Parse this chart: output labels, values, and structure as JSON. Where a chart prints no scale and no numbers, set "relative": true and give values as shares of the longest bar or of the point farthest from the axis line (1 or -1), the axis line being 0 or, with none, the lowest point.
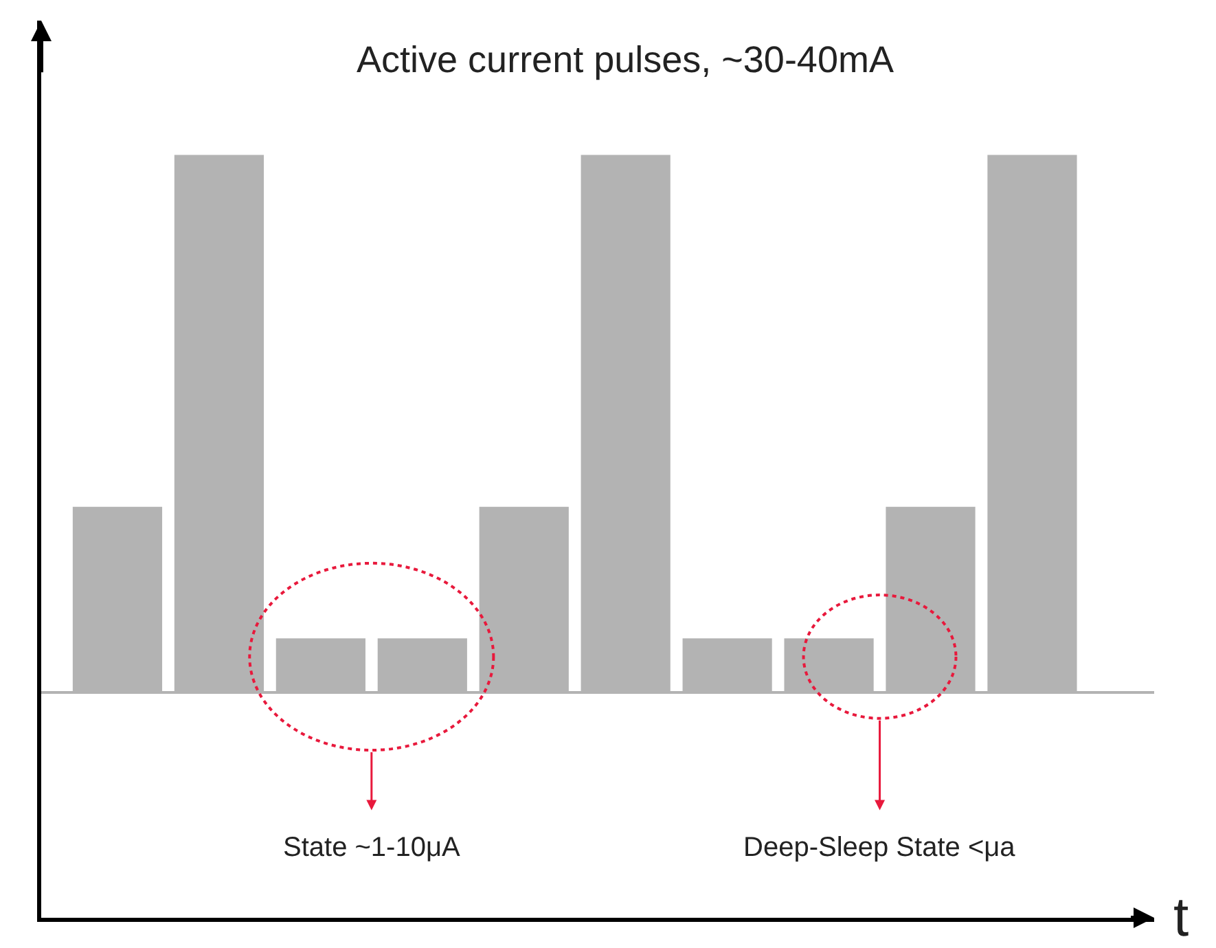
{
  "chart_data": {
    "type": "bar",
    "relative": true,
    "title": "Active current pulses, ~30-40mA",
    "xlabel": "t",
    "categories": [
      null,
      null,
      null,
      null,
      null,
      null,
      null,
      null,
      null,
      null
    ],
    "values": [
      0.345,
      1,
      0.1,
      0.1,
      0.345,
      1,
      0.1,
      0.1,
      0.345,
      1
    ],
    "color": "#b3b3b3",
    "annotations": [
      "State ~1-10μA",
      "Deep-Sleep State <μa"
    ],
    "legend": false
  }
}
